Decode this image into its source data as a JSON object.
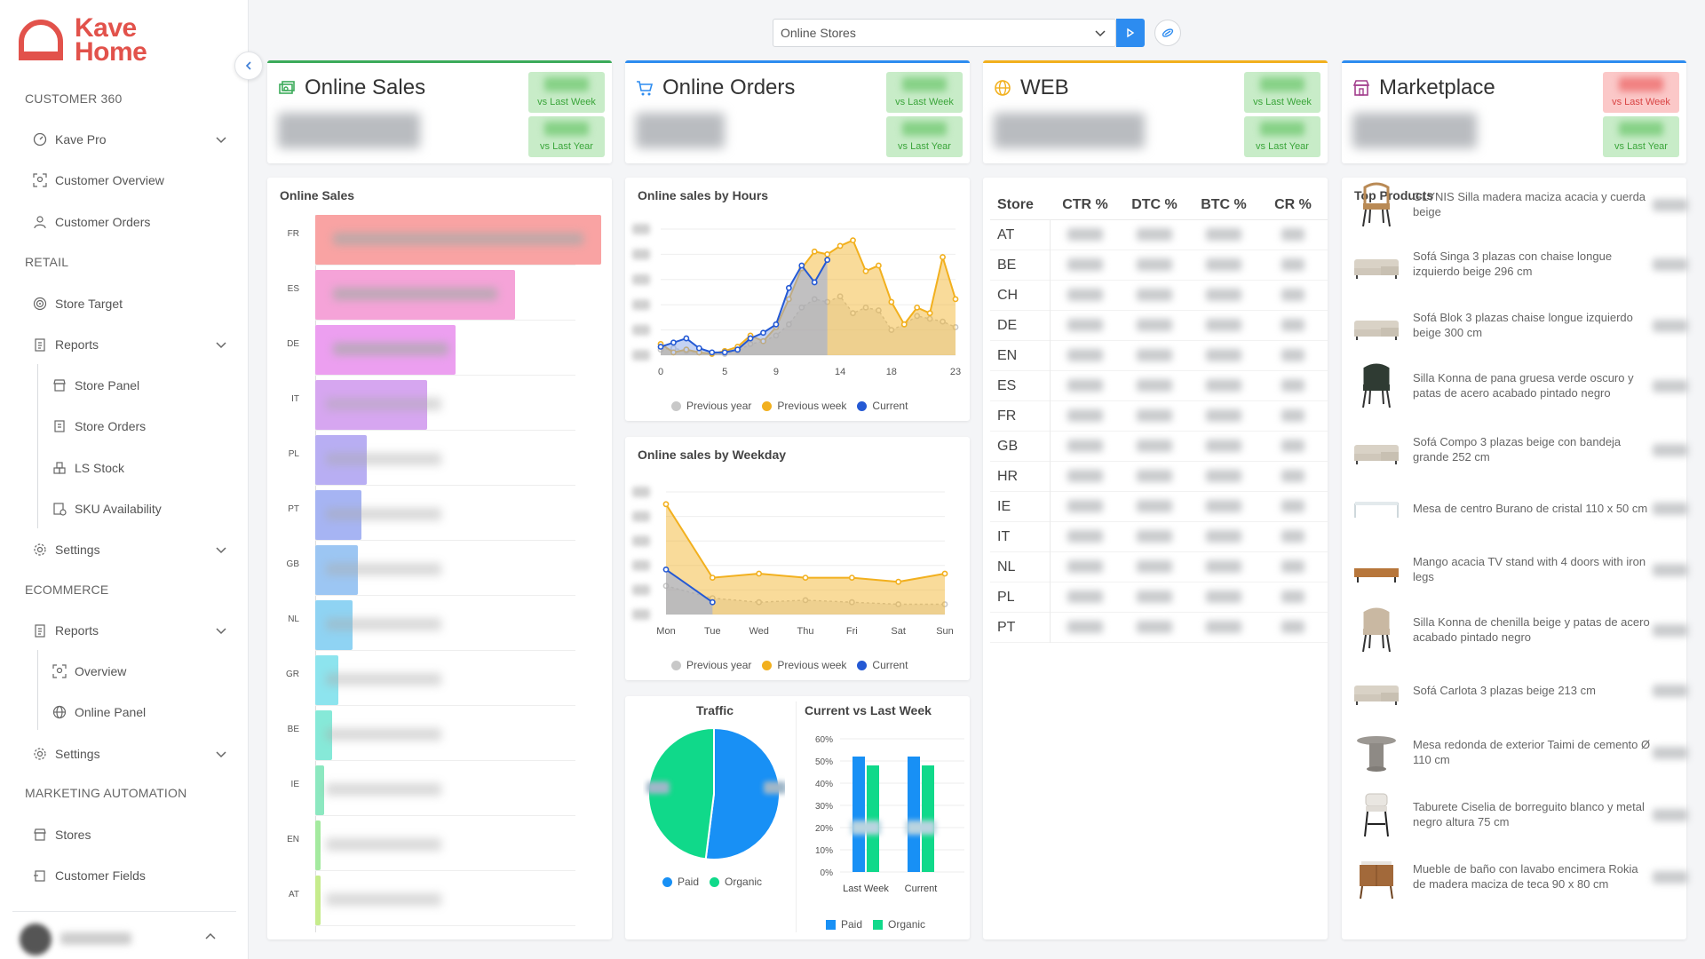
{
  "brand": {
    "line1": "Kave",
    "line2": "Home",
    "color": "#e2524b"
  },
  "sidebar": {
    "sections": [
      "CUSTOMER 360",
      "RETAIL",
      "ECOMMERCE",
      "MARKETING AUTOMATION"
    ],
    "items": [
      {
        "label": "Kave Pro",
        "icon": "gauge-icon"
      },
      {
        "label": "Customer Overview",
        "icon": "user-focus-icon"
      },
      {
        "label": "Customer Orders",
        "icon": "user-icon"
      },
      {
        "label": "Store Target",
        "icon": "target-icon"
      },
      {
        "label": "Reports",
        "icon": "report-icon"
      },
      {
        "label": "Store Panel",
        "icon": "store-icon"
      },
      {
        "label": "Store Orders",
        "icon": "receipt-icon"
      },
      {
        "label": "LS Stock",
        "icon": "boxes-icon"
      },
      {
        "label": "SKU Availability",
        "icon": "inventory-icon"
      },
      {
        "label": "Settings",
        "icon": "gear-icon"
      },
      {
        "label": "Reports",
        "icon": "report-icon"
      },
      {
        "label": "Overview",
        "icon": "user-focus-icon"
      },
      {
        "label": "Online Panel",
        "icon": "globe-icon"
      },
      {
        "label": "Settings",
        "icon": "gear-icon"
      },
      {
        "label": "Stores",
        "icon": "store-icon"
      },
      {
        "label": "Customer Fields",
        "icon": "fields-icon"
      }
    ]
  },
  "topbar": {
    "select_value": "Online Stores"
  },
  "kpis": [
    {
      "title": "Online Sales",
      "accent": "#3cab5a",
      "week": "vs Last Week",
      "year": "vs Last Year",
      "week_trend": "pos",
      "year_trend": "pos"
    },
    {
      "title": "Online Orders",
      "accent": "#2d8cf0",
      "week": "vs Last Week",
      "year": "vs Last Year",
      "week_trend": "pos",
      "year_trend": "pos"
    },
    {
      "title": "WEB",
      "accent": "#f2b01e",
      "week": "vs Last Week",
      "year": "vs Last Year",
      "week_trend": "pos",
      "year_trend": "pos"
    },
    {
      "title": "Marketplace",
      "accent": "#2d8cf0",
      "week": "vs Last Week",
      "year": "vs Last Year",
      "week_trend": "neg",
      "year_trend": "pos"
    }
  ],
  "online_sales": {
    "title": "Online Sales",
    "rows": [
      {
        "country": "FR",
        "value": 1.0,
        "color": "#f9a3a3"
      },
      {
        "country": "ES",
        "value": 0.7,
        "color": "#f5a3d8"
      },
      {
        "country": "DE",
        "value": 0.49,
        "color": "#ec9ff0"
      },
      {
        "country": "IT",
        "value": 0.39,
        "color": "#d6a6f0"
      },
      {
        "country": "PL",
        "value": 0.18,
        "color": "#b8aef3"
      },
      {
        "country": "PT",
        "value": 0.16,
        "color": "#a6b4f3"
      },
      {
        "country": "GB",
        "value": 0.15,
        "color": "#9cc6f3"
      },
      {
        "country": "NL",
        "value": 0.13,
        "color": "#8fd3f3"
      },
      {
        "country": "GR",
        "value": 0.08,
        "color": "#8de4ee"
      },
      {
        "country": "BE",
        "value": 0.06,
        "color": "#86e9d8"
      },
      {
        "country": "IE",
        "value": 0.03,
        "color": "#8ce8c0"
      },
      {
        "country": "EN",
        "value": 0.02,
        "color": "#a4ea9f"
      },
      {
        "country": "AT",
        "value": 0.02,
        "color": "#c6ec8c"
      }
    ]
  },
  "chart_data": [
    {
      "type": "area",
      "title": "Online sales by Hours",
      "x": [
        0,
        1,
        2,
        3,
        4,
        5,
        6,
        7,
        8,
        9,
        10,
        11,
        12,
        13,
        14,
        15,
        16,
        17,
        18,
        19,
        20,
        21,
        22,
        23
      ],
      "x_ticks": [
        "0",
        "5",
        "9",
        "14",
        "18",
        "23"
      ],
      "series": [
        {
          "name": "Previous year",
          "color": "#c8c8c8",
          "values": [
            4,
            5,
            3,
            2,
            1,
            1,
            3,
            8,
            10,
            14,
            22,
            34,
            40,
            38,
            42,
            30,
            34,
            32,
            18,
            22,
            28,
            26,
            24,
            20
          ]
        },
        {
          "name": "Previous week",
          "color": "#f2b01e",
          "values": [
            8,
            2,
            4,
            2,
            1,
            3,
            6,
            14,
            10,
            20,
            40,
            62,
            74,
            72,
            78,
            82,
            60,
            64,
            38,
            22,
            34,
            30,
            70,
            40
          ]
        },
        {
          "name": "Current",
          "color": "#2459d4",
          "values": [
            6,
            9,
            12,
            5,
            2,
            2,
            4,
            12,
            16,
            22,
            48,
            64,
            52,
            68,
            null,
            null,
            null,
            null,
            null,
            null,
            null,
            null,
            null,
            null
          ]
        }
      ]
    },
    {
      "type": "area",
      "title": "Online sales by Weekday",
      "categories": [
        "Mon",
        "Tue",
        "Wed",
        "Thu",
        "Fri",
        "Sat",
        "Sun"
      ],
      "series": [
        {
          "name": "Previous year",
          "color": "#c8c8c8",
          "values": [
            14,
            8,
            6,
            7,
            6,
            5,
            5
          ]
        },
        {
          "name": "Previous week",
          "color": "#f2b01e",
          "values": [
            54,
            18,
            20,
            18,
            18,
            16,
            20
          ]
        },
        {
          "name": "Current",
          "color": "#2459d4",
          "values": [
            22,
            6,
            null,
            null,
            null,
            null,
            null
          ]
        }
      ]
    },
    {
      "type": "pie",
      "title": "Traffic",
      "series": [
        {
          "name": "Paid",
          "value": 52,
          "color": "#1890f5"
        },
        {
          "name": "Organic",
          "value": 48,
          "color": "#10d98a"
        }
      ]
    },
    {
      "type": "bar",
      "title": "Current vs Last Week",
      "categories": [
        "Last Week",
        "Current"
      ],
      "y_ticks": [
        "60%",
        "50%",
        "40%",
        "30%",
        "20%",
        "10%",
        "0%"
      ],
      "ylim": [
        0,
        60
      ],
      "series": [
        {
          "name": "Paid",
          "color": "#1890f5",
          "values": [
            52,
            52
          ]
        },
        {
          "name": "Organic",
          "color": "#10d98a",
          "values": [
            48,
            48
          ]
        }
      ]
    }
  ],
  "web_table": {
    "columns": [
      "Store",
      "CTR %",
      "DTC %",
      "BTC %",
      "CR %"
    ],
    "rows": [
      "AT",
      "BE",
      "CH",
      "DE",
      "EN",
      "ES",
      "FR",
      "GB",
      "HR",
      "IE",
      "IT",
      "NL",
      "PL",
      "PT"
    ]
  },
  "top_products": {
    "title": "Top Products",
    "items": [
      {
        "name": "GLYNIS Silla madera maciza acacia y cuerda beige",
        "kind": "chair"
      },
      {
        "name": "Sofá Singa 3 plazas con chaise longue izquierdo beige 296 cm",
        "kind": "sofa"
      },
      {
        "name": "Sofá Blok 3 plazas chaise longue izquierdo beige 300 cm",
        "kind": "sofa"
      },
      {
        "name": "Silla Konna de pana gruesa verde oscuro y patas de acero acabado pintado negro",
        "kind": "chair-green"
      },
      {
        "name": "Sofá Compo 3 plazas beige con bandeja grande 252 cm",
        "kind": "sofa"
      },
      {
        "name": "Mesa de centro Burano de cristal 110 x 50 cm",
        "kind": "table-glass"
      },
      {
        "name": "Mango acacia TV stand with 4 doors with iron legs",
        "kind": "tv-stand"
      },
      {
        "name": "Silla Konna de chenilla beige y patas de acero acabado pintado negro",
        "kind": "chair-beige"
      },
      {
        "name": "Sofá Carlota 3 plazas beige 213 cm",
        "kind": "sofa"
      },
      {
        "name": "Mesa redonda de exterior Taimi de cemento Ø 110 cm",
        "kind": "round-table"
      },
      {
        "name": "Taburete Ciselia de borreguito blanco y metal negro altura 75 cm",
        "kind": "stool"
      },
      {
        "name": "Mueble de baño con lavabo encimera Rokia de madera maciza de teca 90 x 80 cm",
        "kind": "cabinet"
      }
    ]
  }
}
